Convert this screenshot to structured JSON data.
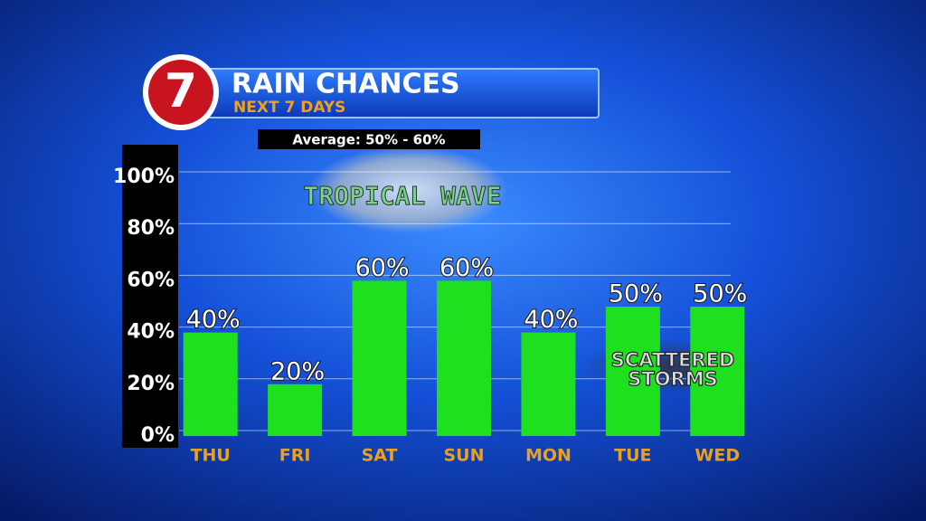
{
  "chart_data": {
    "type": "bar",
    "logo": "7",
    "title": "RAIN CHANCES",
    "subtitle": "NEXT 7 DAYS",
    "note": "Average: 50% - 60%",
    "annotations": [
      {
        "text": "TROPICAL WAVE"
      },
      {
        "lines": [
          "SCATTERED",
          "STORMS"
        ]
      }
    ],
    "categories": [
      "THU",
      "FRI",
      "SAT",
      "SUN",
      "MON",
      "TUE",
      "WED"
    ],
    "values": [
      40,
      20,
      60,
      60,
      40,
      50,
      50
    ],
    "value_labels": [
      "40%",
      "20%",
      "60%",
      "60%",
      "40%",
      "50%",
      "50%"
    ],
    "color": "#1fe01f",
    "ylim": [
      0,
      100
    ],
    "yticks": [
      {
        "value": 0,
        "label": "0%"
      },
      {
        "value": 20,
        "label": "20%"
      },
      {
        "value": 40,
        "label": "40%"
      },
      {
        "value": 60,
        "label": "60%"
      },
      {
        "value": 80,
        "label": "80%"
      },
      {
        "value": 100,
        "label": "100%"
      }
    ],
    "grid": true
  }
}
